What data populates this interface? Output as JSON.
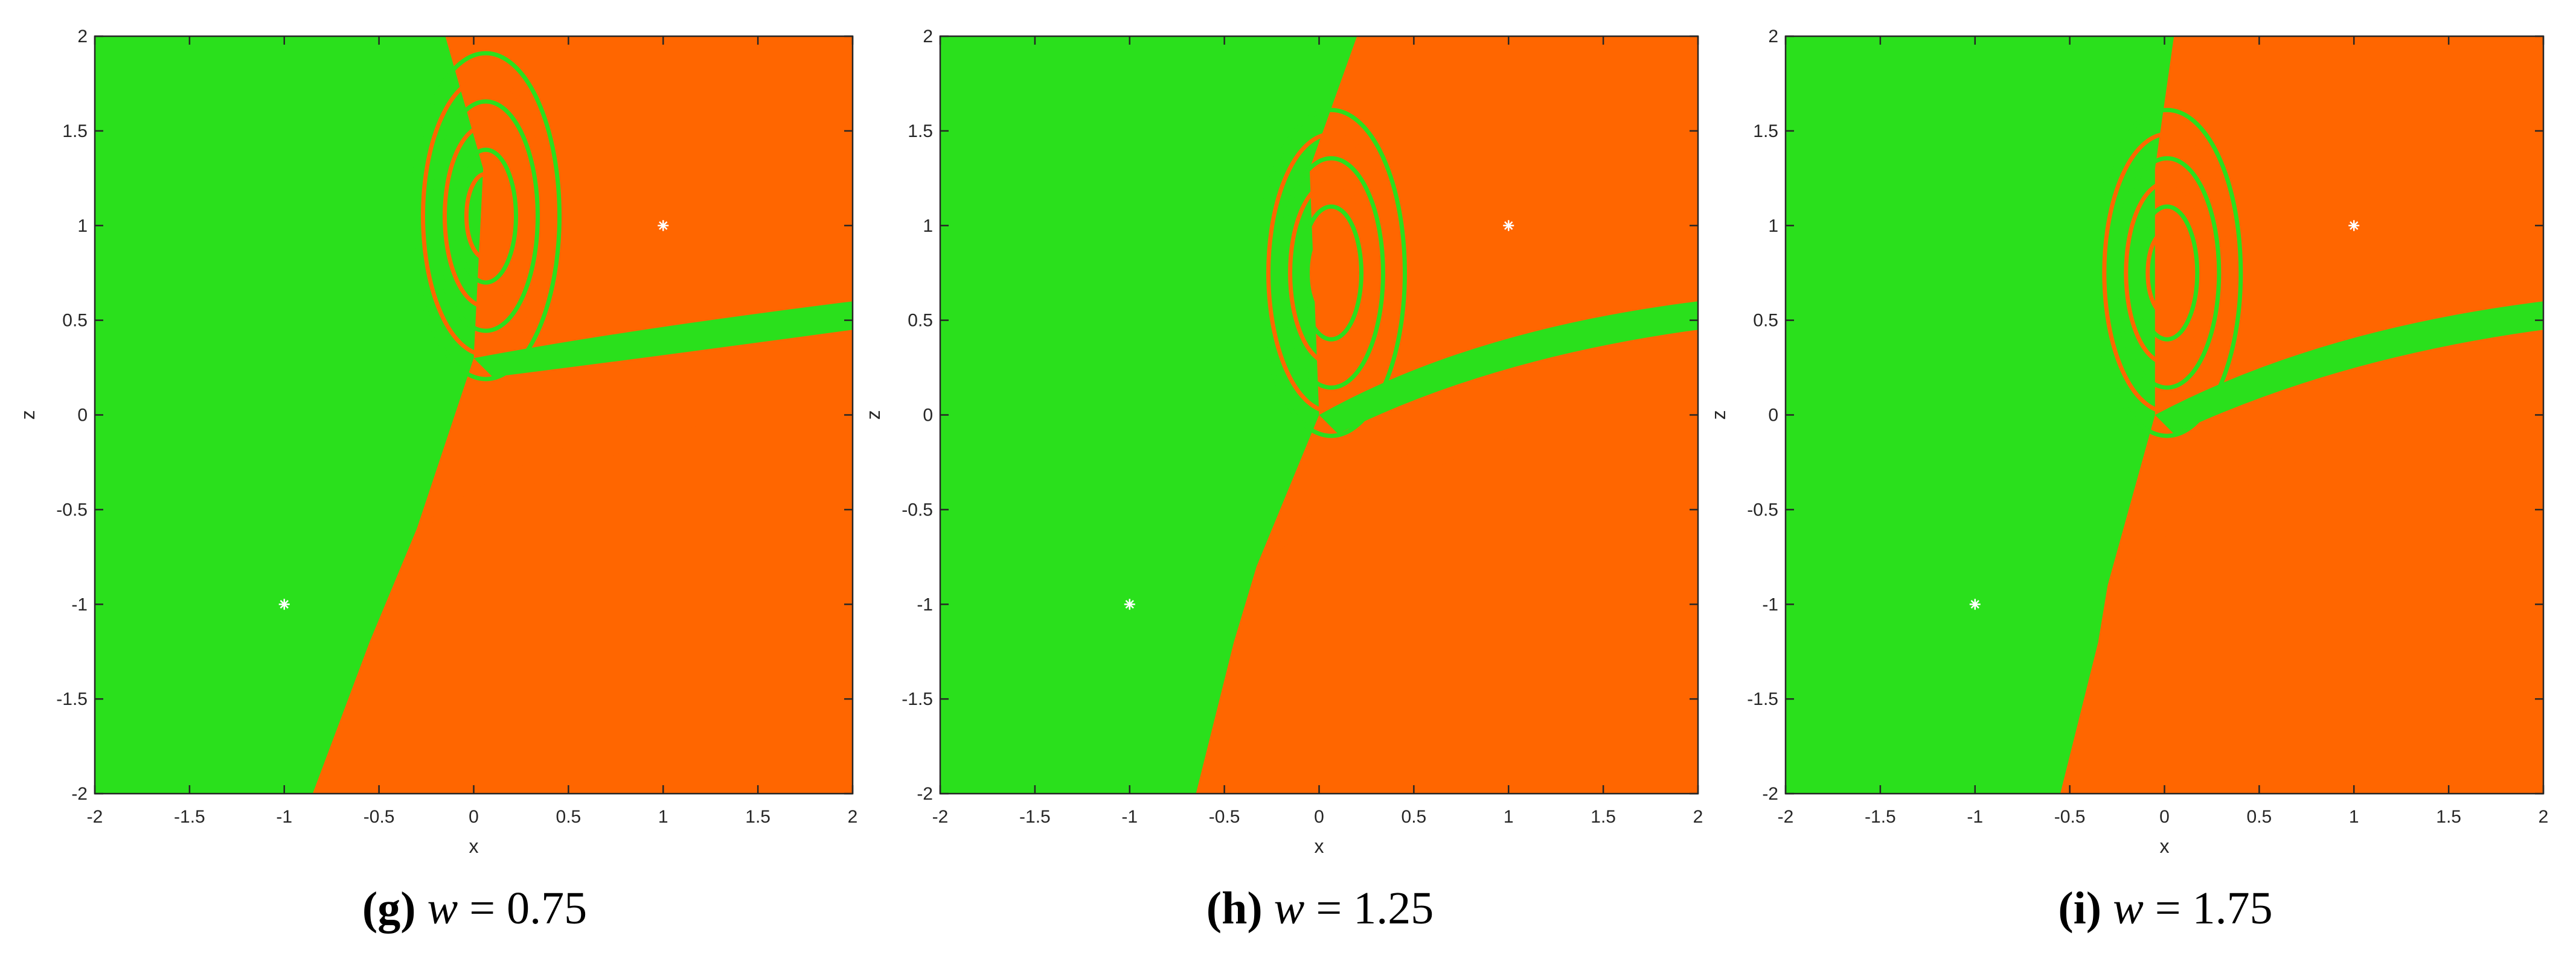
{
  "colors": {
    "basin_green": "#2ae01c",
    "basin_orange": "#ff6600",
    "marker": "#ffffff",
    "axis": "#262626"
  },
  "chart_data": [
    {
      "type": "heatmap",
      "caption": {
        "letter": "(g)",
        "var": "w",
        "eq": " = ",
        "value": "0.75"
      },
      "xlabel": "x",
      "ylabel": "z",
      "xlim": [
        -2,
        2
      ],
      "ylim": [
        -2,
        2
      ],
      "xticks": [
        "-2",
        "-1.5",
        "-1",
        "-0.5",
        "0",
        "0.5",
        "1",
        "1.5",
        "2"
      ],
      "yticks": [
        "-2",
        "-1.5",
        "-1",
        "-0.5",
        "0",
        "0.5",
        "1",
        "1.5",
        "2"
      ],
      "markers": [
        {
          "x": -1,
          "y": -1
        },
        {
          "x": 1,
          "y": 1
        }
      ],
      "basin_boundary": [
        [
          -0.85,
          -2
        ],
        [
          -0.55,
          -1.2
        ],
        [
          -0.3,
          -0.6
        ],
        [
          0.0,
          0.3
        ],
        [
          0.05,
          1.3
        ],
        [
          -0.15,
          2
        ]
      ]
    },
    {
      "type": "heatmap",
      "caption": {
        "letter": "(h)",
        "var": "w",
        "eq": " = ",
        "value": "1.25"
      },
      "xlabel": "x",
      "ylabel": "z",
      "xlim": [
        -2,
        2
      ],
      "ylim": [
        -2,
        2
      ],
      "xticks": [
        "-2",
        "-1.5",
        "-1",
        "-0.5",
        "0",
        "0.5",
        "1",
        "1.5",
        "2"
      ],
      "yticks": [
        "-2",
        "-1.5",
        "-1",
        "-0.5",
        "0",
        "0.5",
        "1",
        "1.5",
        "2"
      ],
      "markers": [
        {
          "x": -1,
          "y": -1
        },
        {
          "x": 1,
          "y": 1
        }
      ],
      "basin_boundary": [
        [
          -0.65,
          -2
        ],
        [
          -0.45,
          -1.2
        ],
        [
          -0.33,
          -0.8
        ],
        [
          0.0,
          0.0
        ],
        [
          -0.05,
          1.3
        ],
        [
          0.2,
          2
        ]
      ]
    },
    {
      "type": "heatmap",
      "caption": {
        "letter": "(i)",
        "var": "w",
        "eq": " = ",
        "value": "1.75"
      },
      "xlabel": "x",
      "ylabel": "z",
      "xlim": [
        -2,
        2
      ],
      "ylim": [
        -2,
        2
      ],
      "xticks": [
        "-2",
        "-1.5",
        "-1",
        "-0.5",
        "0",
        "0.5",
        "1",
        "1.5",
        "2"
      ],
      "yticks": [
        "-2",
        "-1.5",
        "-1",
        "-0.5",
        "0",
        "0.5",
        "1",
        "1.5",
        "2"
      ],
      "markers": [
        {
          "x": -1,
          "y": -1
        },
        {
          "x": 1,
          "y": 1
        }
      ],
      "basin_boundary": [
        [
          -0.55,
          -2
        ],
        [
          -0.35,
          -1.2
        ],
        [
          -0.3,
          -0.9
        ],
        [
          -0.05,
          0.0
        ],
        [
          -0.05,
          1.3
        ],
        [
          0.05,
          2
        ]
      ]
    }
  ]
}
